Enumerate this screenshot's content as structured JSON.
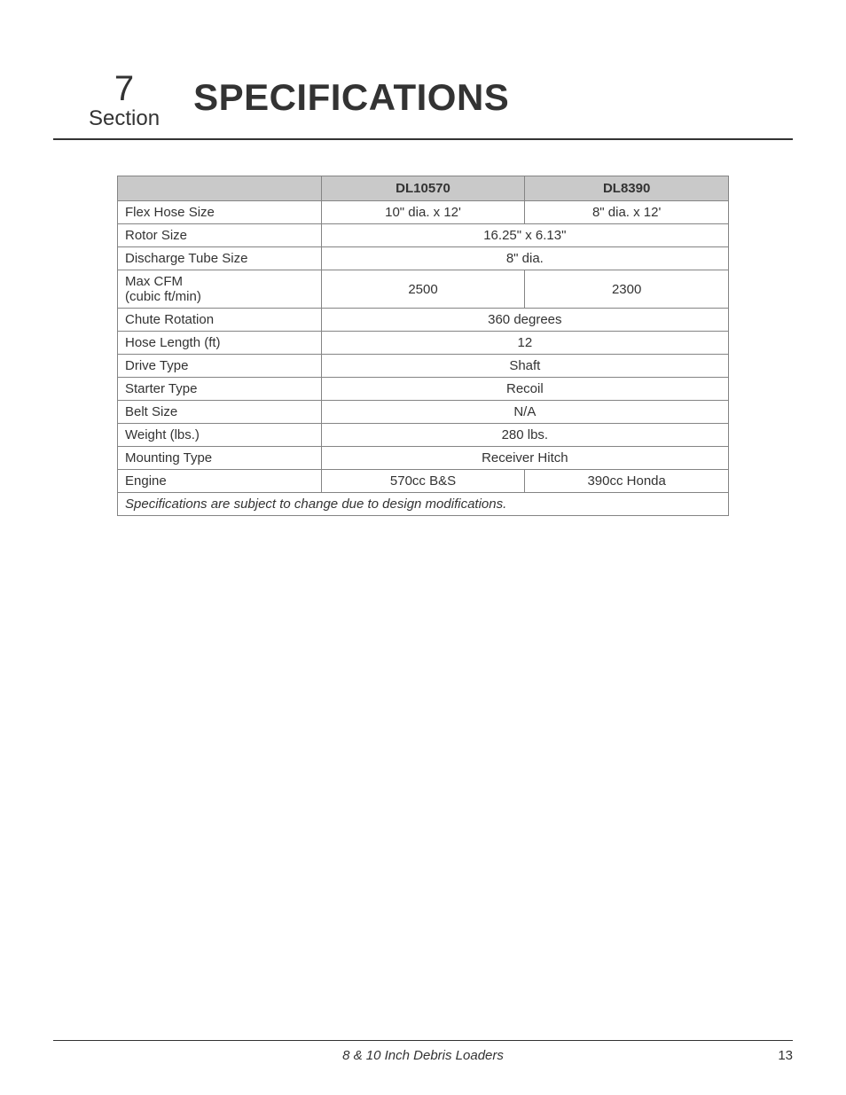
{
  "header": {
    "section_number": "7",
    "section_label": "Section",
    "title": "SPECIFICATIONS"
  },
  "table": {
    "columns": [
      "",
      "DL10570",
      "DL8390"
    ],
    "rows": [
      {
        "label": "Flex Hose Size",
        "col1": "10\" dia. x 12'",
        "col2": "8\" dia. x 12'",
        "span": false
      },
      {
        "label": "Rotor Size",
        "merged": "16.25\" x 6.13\"",
        "span": true
      },
      {
        "label": "Discharge Tube Size",
        "merged": "8\" dia.",
        "span": true
      },
      {
        "label": "Max CFM\n(cubic ft/min)",
        "col1": "2500",
        "col2": "2300",
        "span": false,
        "multiline": true
      },
      {
        "label": "Chute Rotation",
        "merged": "360 degrees",
        "span": true
      },
      {
        "label": "Hose Length (ft)",
        "merged": "12",
        "span": true
      },
      {
        "label": "Drive Type",
        "merged": "Shaft",
        "span": true
      },
      {
        "label": "Starter Type",
        "merged": "Recoil",
        "span": true
      },
      {
        "label": "Belt Size",
        "merged": "N/A",
        "span": true
      },
      {
        "label": "Weight (lbs.)",
        "merged": "280 lbs.",
        "span": true
      },
      {
        "label": "Mounting Type",
        "merged": "Receiver Hitch",
        "span": true
      },
      {
        "label": "Engine",
        "col1": "570cc B&S",
        "col2": "390cc Honda",
        "span": false
      }
    ],
    "footnote": "Specifications are subject to change due to design modifications."
  },
  "footer": {
    "doc_title": "8 & 10 Inch Debris Loaders",
    "page_number": "13"
  },
  "colors": {
    "header_bg": "#c9c9c9",
    "border": "#848484",
    "text": "#333333",
    "rule": "#333333"
  },
  "typography": {
    "title_fontsize": 42,
    "section_number_fontsize": 40,
    "section_label_fontsize": 24,
    "table_fontsize": 15,
    "footer_fontsize": 15
  }
}
